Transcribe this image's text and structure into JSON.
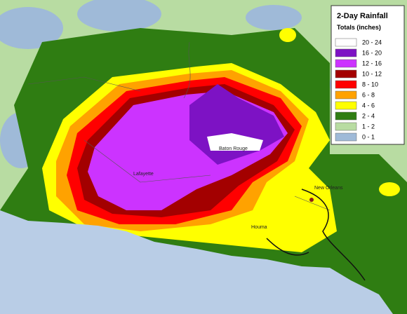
{
  "legend": {
    "title": "2-Day Rainfall",
    "subtitle": "Totals (inches)",
    "items": [
      {
        "label": "20 - 24",
        "color": "#ffffff"
      },
      {
        "label": "16 - 20",
        "color": "#7d12c4"
      },
      {
        "label": "12 - 16",
        "color": "#cc33ff"
      },
      {
        "label": "10 - 12",
        "color": "#a30000"
      },
      {
        "label": "8 - 10",
        "color": "#ff0000"
      },
      {
        "label": "6 - 8",
        "color": "#ffa200"
      },
      {
        "label": "4 - 6",
        "color": "#ffff00"
      },
      {
        "label": "2 - 4",
        "color": "#2f7d12"
      },
      {
        "label": "1 - 2",
        "color": "#b8dca2"
      },
      {
        "label": "0 - 1",
        "color": "#9fbad8"
      }
    ]
  },
  "places": [
    "Baton Rouge",
    "New Orleans",
    "Lafayette",
    "Houma"
  ]
}
